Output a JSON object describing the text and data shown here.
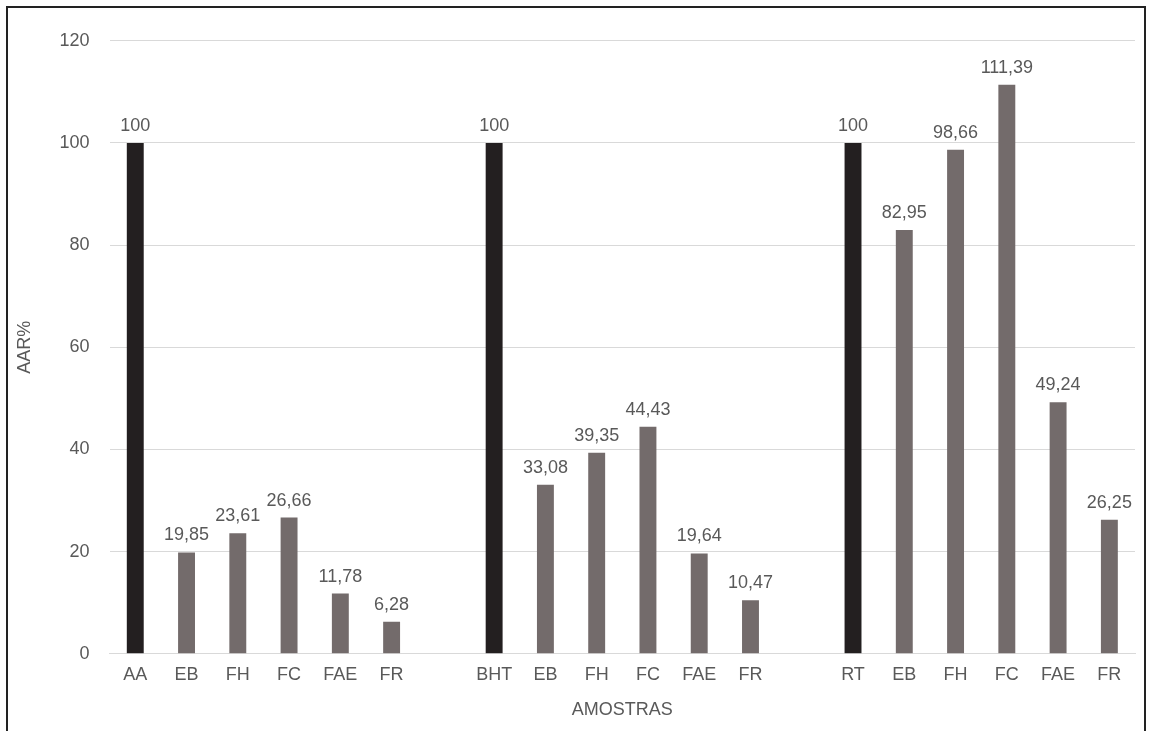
{
  "chart_data": {
    "type": "bar",
    "xlabel": "AMOSTRAS",
    "ylabel": "AAR%",
    "categories": [
      "AA",
      "EB",
      "FH",
      "FC",
      "FAE",
      "FR",
      null,
      "BHT",
      "EB",
      "FH",
      "FC",
      "FAE",
      "FR",
      null,
      "RT",
      "EB",
      "FH",
      "FC",
      "FAE",
      "FR"
    ],
    "values": [
      100,
      19.85,
      23.61,
      26.66,
      11.78,
      6.28,
      null,
      100,
      33.08,
      39.35,
      44.43,
      19.64,
      10.47,
      null,
      100,
      82.95,
      98.66,
      111.39,
      49.24,
      26.25
    ],
    "value_labels": [
      "100",
      "19,85",
      "23,61",
      "26,66",
      "11,78",
      "6,28",
      null,
      "100",
      "33,08",
      "39,35",
      "44,43",
      "19,64",
      "10,47",
      null,
      "100",
      "82,95",
      "98,66",
      "111,39",
      "49,24",
      "26,25"
    ],
    "colors": [
      "#231f20",
      "#736b6b",
      "#736b6b",
      "#736b6b",
      "#736b6b",
      "#736b6b",
      "#736b6b",
      "#231f20",
      "#736b6b",
      "#736b6b",
      "#736b6b",
      "#736b6b",
      "#736b6b",
      "#736b6b",
      "#231f20",
      "#736b6b",
      "#736b6b",
      "#736b6b",
      "#736b6b",
      "#736b6b"
    ],
    "ylim": [
      0,
      120
    ],
    "yticks": [
      0,
      20,
      40,
      60,
      80,
      100,
      120
    ],
    "grid": "y",
    "legend": false
  }
}
